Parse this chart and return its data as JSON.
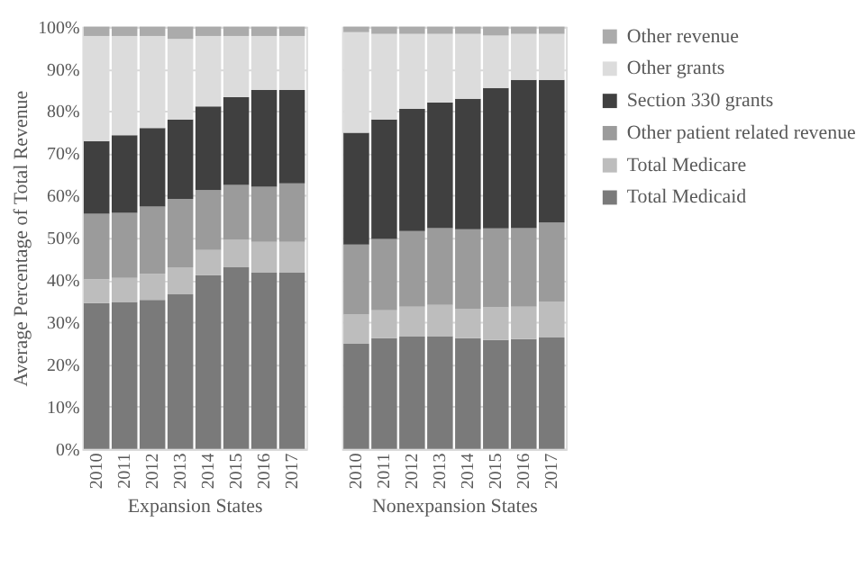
{
  "chart_data": [
    {
      "type": "bar",
      "stacked": true,
      "xlabel": "Expansion States",
      "ylabel": "Average Percentage of Total Revenue",
      "categories": [
        "2010",
        "2011",
        "2012",
        "2013",
        "2014",
        "2015",
        "2016",
        "2017"
      ],
      "ylim": [
        0,
        100
      ],
      "yticks": [
        {
          "value": 0,
          "label": "0%"
        },
        {
          "value": 10,
          "label": "10%"
        },
        {
          "value": 20,
          "label": "20%"
        },
        {
          "value": 30,
          "label": "30%"
        },
        {
          "value": 40,
          "label": "40%"
        },
        {
          "value": 50,
          "label": "50%"
        },
        {
          "value": 60,
          "label": "60%"
        },
        {
          "value": 70,
          "label": "70%"
        },
        {
          "value": 80,
          "label": "80%"
        },
        {
          "value": 90,
          "label": "90%"
        },
        {
          "value": 100,
          "label": "100%"
        }
      ],
      "grid": "y",
      "legend": "right",
      "series": [
        {
          "name": "Total Medicaid",
          "color": "#7a7a7a",
          "values": [
            34.5,
            34.8,
            35.3,
            36.6,
            41.1,
            43.0,
            41.7,
            41.7
          ]
        },
        {
          "name": "Total Medicare",
          "color": "#bdbdbd",
          "values": [
            5.6,
            5.7,
            6.2,
            6.4,
            6.0,
            6.5,
            7.3,
            7.3
          ]
        },
        {
          "name": "Other patient related revenue",
          "color": "#9b9b9b",
          "values": [
            15.6,
            15.4,
            15.9,
            16.2,
            14.2,
            13.0,
            13.1,
            13.9
          ]
        },
        {
          "name": "Section 330 grants",
          "color": "#404040",
          "values": [
            17.2,
            18.4,
            18.6,
            18.8,
            19.8,
            20.8,
            22.9,
            22.1
          ]
        },
        {
          "name": "Other grants",
          "color": "#dcdcdc",
          "values": [
            24.9,
            23.5,
            21.8,
            19.1,
            16.7,
            14.5,
            12.8,
            12.8
          ]
        },
        {
          "name": "Other revenue",
          "color": "#ababab",
          "values": [
            2.2,
            2.2,
            2.2,
            2.9,
            2.2,
            2.2,
            2.2,
            2.2
          ]
        }
      ]
    },
    {
      "type": "bar",
      "stacked": true,
      "xlabel": "Nonexpansion States",
      "categories": [
        "2010",
        "2011",
        "2012",
        "2013",
        "2014",
        "2015",
        "2016",
        "2017"
      ],
      "ylim": [
        0,
        100
      ],
      "grid": "y",
      "legend": "right",
      "tick_labels": "x",
      "yticks": [
        {
          "value": 0,
          "label": null
        },
        {
          "value": 10,
          "label": null
        },
        {
          "value": 20,
          "label": null
        },
        {
          "value": 30,
          "label": null
        },
        {
          "value": 40,
          "label": null
        },
        {
          "value": 50,
          "label": null
        },
        {
          "value": 60,
          "label": null
        },
        {
          "value": 70,
          "label": null
        },
        {
          "value": 80,
          "label": null
        },
        {
          "value": 90,
          "label": null
        },
        {
          "value": 100,
          "label": null
        }
      ],
      "series": [
        {
          "name": "Total Medicaid",
          "color": "#7a7a7a",
          "values": [
            24.9,
            26.2,
            26.6,
            26.7,
            26.2,
            25.8,
            26.0,
            26.4
          ]
        },
        {
          "name": "Total Medicare",
          "color": "#bdbdbd",
          "values": [
            6.9,
            6.6,
            7.1,
            7.4,
            7.0,
            7.7,
            7.7,
            8.5
          ]
        },
        {
          "name": "Other patient related revenue",
          "color": "#9b9b9b",
          "values": [
            16.6,
            16.9,
            17.9,
            18.2,
            18.8,
            18.7,
            18.6,
            18.7
          ]
        },
        {
          "name": "Section 330 grants",
          "color": "#404040",
          "values": [
            26.5,
            28.3,
            28.9,
            29.7,
            30.9,
            33.3,
            35.1,
            33.8
          ]
        },
        {
          "name": "Other grants",
          "color": "#dcdcdc",
          "values": [
            23.8,
            20.3,
            17.8,
            16.3,
            15.4,
            12.4,
            10.9,
            10.9
          ]
        },
        {
          "name": "Other revenue",
          "color": "#ababab",
          "values": [
            1.3,
            1.7,
            1.7,
            1.7,
            1.7,
            2.1,
            1.7,
            1.7
          ]
        }
      ]
    }
  ]
}
